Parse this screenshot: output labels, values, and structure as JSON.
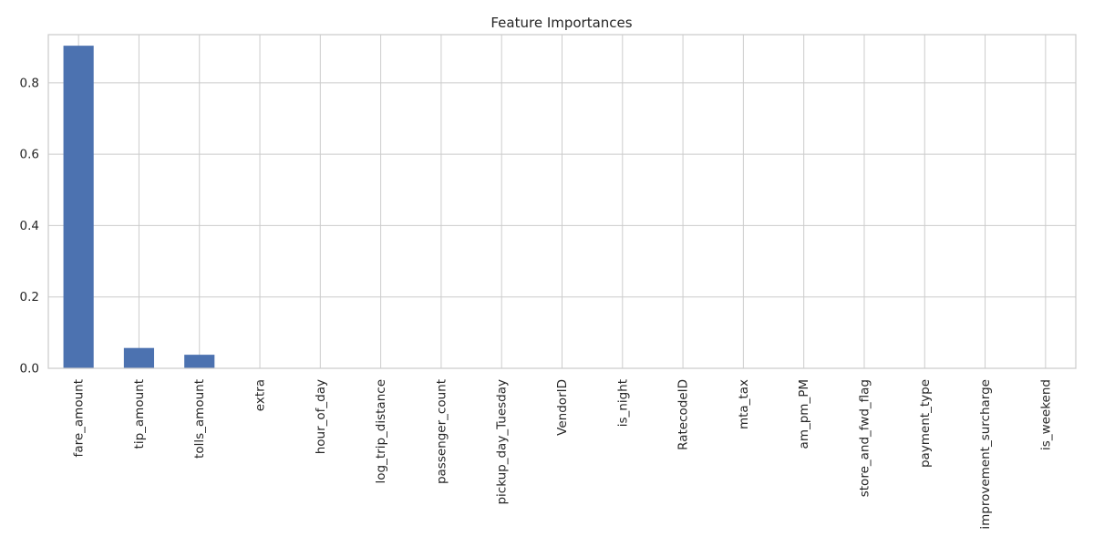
{
  "chart_data": {
    "type": "bar",
    "title": "Feature Importances",
    "xlabel": "",
    "ylabel": "",
    "categories": [
      "fare_amount",
      "tip_amount",
      "tolls_amount",
      "extra",
      "hour_of_day",
      "log_trip_distance",
      "passenger_count",
      "pickup_day_Tuesday",
      "VendorID",
      "is_night",
      "RatecodeID",
      "mta_tax",
      "am_pm_PM",
      "store_and_fwd_flag",
      "payment_type",
      "improvement_surcharge",
      "is_weekend"
    ],
    "values": [
      0.904,
      0.057,
      0.038,
      0.0008,
      0.0005,
      0.0004,
      0.0003,
      0.0002,
      0.0002,
      0.0001,
      0.0001,
      0.0001,
      0.0001,
      0.0,
      0.0,
      0.0,
      0.0
    ],
    "ylim": [
      0,
      0.935
    ],
    "yticks": [
      0.0,
      0.2,
      0.4,
      0.6,
      0.8
    ],
    "ytick_labels": [
      "0.0",
      "0.2",
      "0.4",
      "0.6",
      "0.8"
    ],
    "grid": true,
    "legend": "none",
    "colors": {
      "bar": "#4c72b0",
      "grid": "#cccccc",
      "text": "#262626",
      "background": "#ffffff"
    }
  }
}
